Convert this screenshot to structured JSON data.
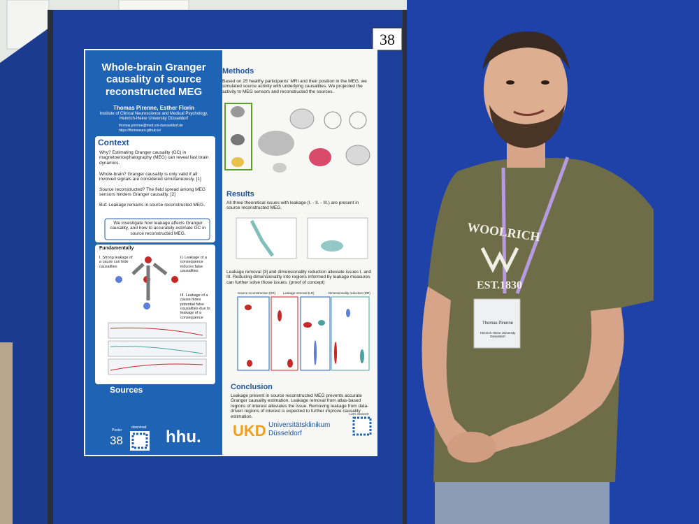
{
  "board_number": "38",
  "poster": {
    "title": "Whole-brain Granger causality of source reconstructed MEG",
    "authors": "Thomas Pirenne, Esther Florin",
    "affiliation": "Institute of Clinical Neuroscience and Medical Psychology, Heinrich-Heine University Düsseldorf",
    "email": "thomas.pirenne@med.uni-duesseldorf.de",
    "url": "https://florinneuro.github.io/",
    "context": {
      "heading": "Context",
      "paragraphs": [
        "Why? Estimating Granger causality (GC) in magnetoencephalography (MEG) can reveal fast brain dynamics.",
        "Whole-brain? Granger causality is only valid if all involved signals are considered simultaneously. [1]",
        "Source reconstructed? The field spread among MEG sensors hinders Granger causality. [2]",
        "But: Leakage remains in source reconstructed MEG."
      ],
      "aim": "We investigate how leakage affects Granger causality, and how to accurately estimate GC in source reconstructed MEG."
    },
    "fundamentally": {
      "heading": "Fundamentally",
      "items": [
        "I. Strong leakage of a cause can hide causalities",
        "II. Leakage of a consequence induces false causalities",
        "III. Leakage of a cause hides potential false causalities due to leakage of a consequence"
      ]
    },
    "sources": {
      "heading": "Sources",
      "poster_label": "Poster",
      "poster_number": "38",
      "download": "download",
      "logo": "hhu."
    },
    "methods": {
      "heading": "Methods",
      "text": "Based on 25 healthy participants' MRI and their position in the MEG, we simulated source activity with underlying causalities. We projected the activity to MEG sensors and reconstructed the sources."
    },
    "results": {
      "heading": "Results",
      "text": "All three theoretical issues with leakage (I. - II. - III.) are present in source reconstructed MEG.",
      "text2": "Leakage removal [3] and dimensionality reduction alleviate issues I. and III. Reducing dimensionality into regions informed by leakage measures can further solve those issues. (proof of concept)",
      "panels": [
        "Source reconstruction (SR)",
        "Leakage removal (LR)",
        "Dimensionality reduction (DR)"
      ]
    },
    "conclusion": {
      "heading": "Conclusion",
      "text": "Leakage present in source reconstructed MEG prevents accurate Granger causality estimation. Leakage removal from atlas-based regions of interest alleviates the issue. Removing leakage from data-driven regions of interest is expected to further improve causality estimation."
    },
    "footer": {
      "ukd": "UKD",
      "clinic": "Universitätsklinikum Düsseldorf",
      "connect": "Let's connect!"
    }
  },
  "shirt": {
    "brand": "WOOLRICH",
    "est": "EST.1830"
  },
  "badge": {
    "name": "Thomas Pirenne",
    "institution": "Heinrich-Heine University Düsseldorf"
  }
}
